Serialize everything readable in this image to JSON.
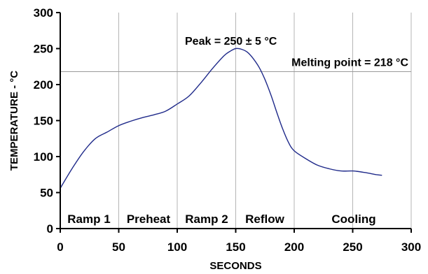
{
  "chart_data": {
    "type": "line",
    "title": "",
    "xlabel": "SECONDS",
    "ylabel": "TEMPERATURE - °C",
    "xlim": [
      0,
      300
    ],
    "ylim": [
      0,
      300
    ],
    "xticks": [
      0,
      50,
      100,
      150,
      200,
      250,
      300
    ],
    "yticks": [
      0,
      50,
      100,
      150,
      200,
      250,
      300
    ],
    "grid": {
      "vertical": true,
      "horizontal": false
    },
    "series": [
      {
        "color": "#1f2a8a",
        "x": [
          0,
          10,
          20,
          30,
          40,
          50,
          60,
          70,
          80,
          90,
          100,
          110,
          120,
          130,
          140,
          145,
          150,
          155,
          160,
          165,
          170,
          175,
          180,
          185,
          190,
          195,
          200,
          210,
          220,
          230,
          240,
          250,
          260,
          270,
          275
        ],
        "y": [
          56,
          83,
          107,
          125,
          134,
          143,
          149,
          154,
          158,
          163,
          173,
          184,
          202,
          222,
          240,
          246,
          250,
          249,
          245,
          236,
          224,
          207,
          186,
          162,
          139,
          120,
          108,
          97,
          88,
          83,
          80,
          80,
          78,
          75,
          74
        ]
      }
    ],
    "reference_lines": [
      {
        "axis": "y",
        "value": 218,
        "label": "Melting point = 218 °C",
        "color": "#9a9a9a"
      }
    ],
    "annotations": [
      {
        "text": "Peak = 250 ± 5 °C"
      }
    ],
    "phases": [
      {
        "label": "Ramp 1"
      },
      {
        "label": "Preheat"
      },
      {
        "label": "Ramp 2"
      },
      {
        "label": "Reflow"
      },
      {
        "label": "Cooling"
      }
    ]
  }
}
